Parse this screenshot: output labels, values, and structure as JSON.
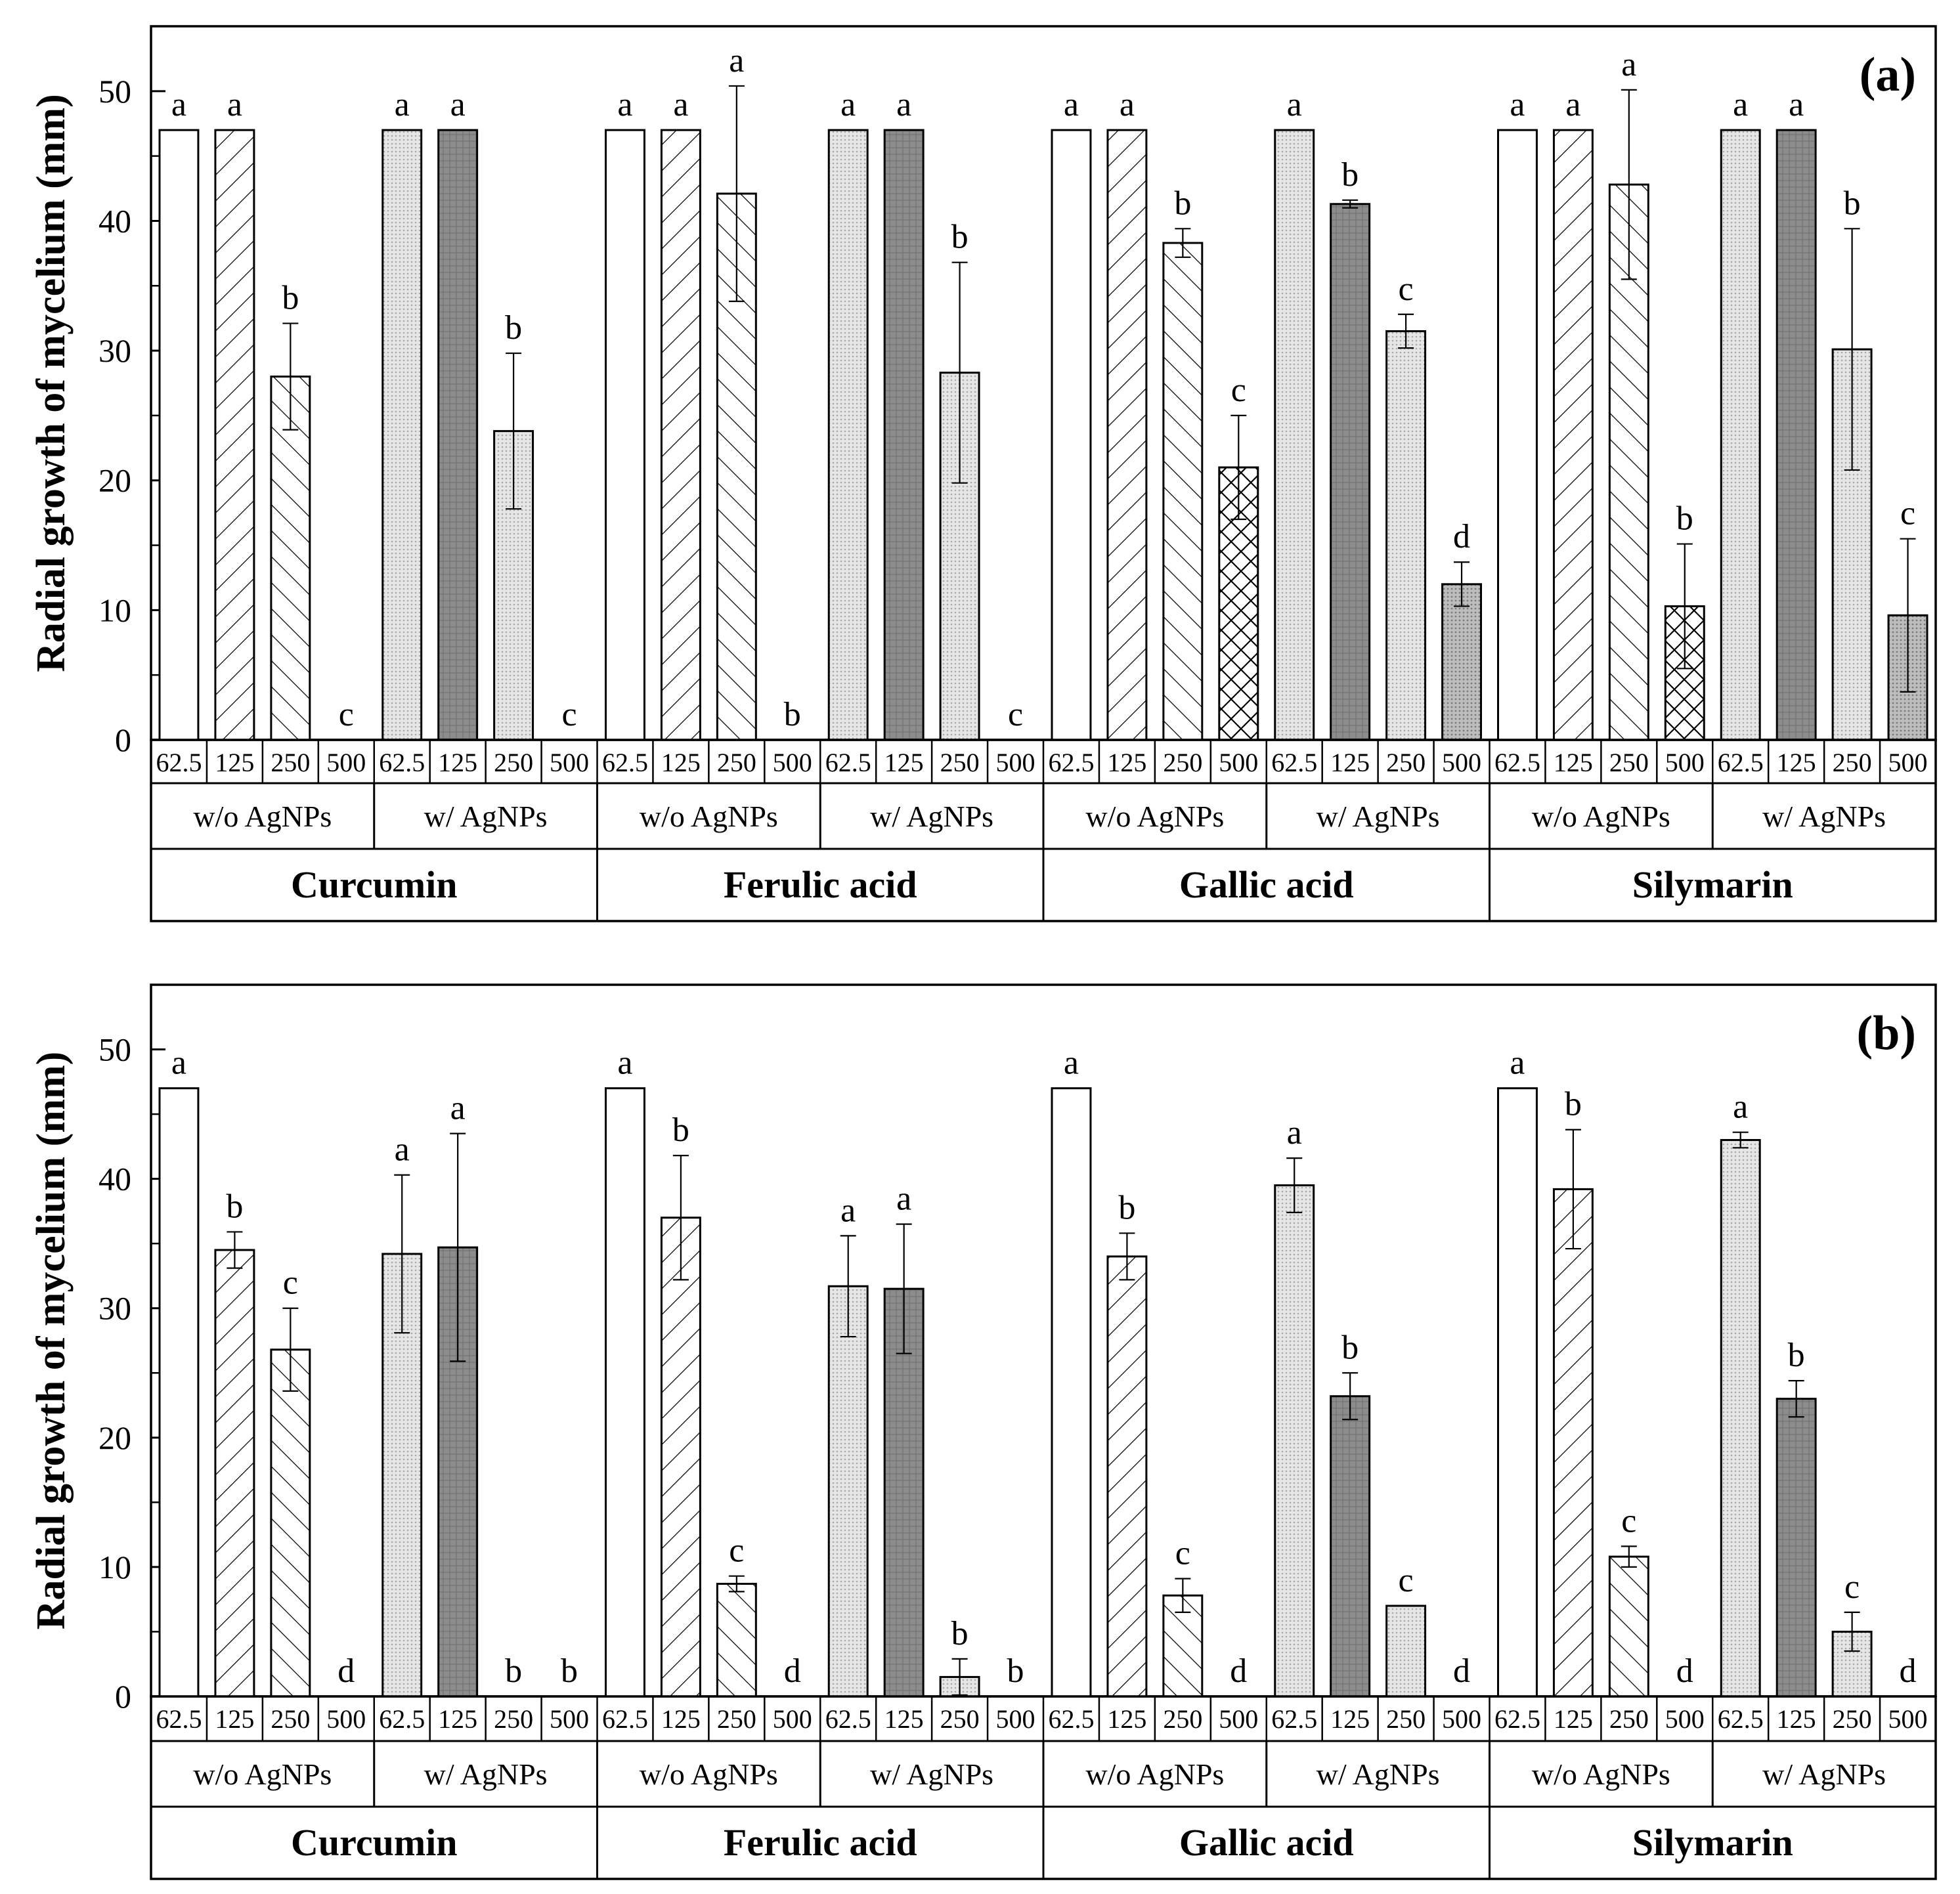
{
  "figure": {
    "colors": {
      "bar_edge": "#000000",
      "hatch": "#000000",
      "dot_fill": "#bdbdbd",
      "dark_fill": "#8c8c8c",
      "background": "#ffffff"
    },
    "concentration_labels": [
      "62.5",
      "125",
      "250",
      "500"
    ],
    "agnp_groups": [
      "w/o AgNPs",
      "w/ AgNPs"
    ],
    "compounds": [
      "Curcumin",
      "Ferulic acid",
      "Gallic acid",
      "Silymarin"
    ],
    "bar_styles_by_group": {
      "w/o AgNPs": [
        "plain",
        "hatch-forward",
        "hatch-back",
        "crosshatch"
      ],
      "w/ AgNPs": [
        "dots",
        "dark-grid",
        "dots",
        "dots-dark"
      ]
    }
  },
  "chart_data": [
    {
      "panel": "a",
      "type": "bar",
      "title": "(a)",
      "ylabel": "Radial growth of mycelium (mm)",
      "xlabel": "",
      "ylim": [
        0,
        55
      ],
      "yticks": [
        0,
        10,
        20,
        30,
        40,
        50
      ],
      "grid": false,
      "series": [
        {
          "compound": "Curcumin",
          "groups": [
            {
              "name": "w/o AgNPs",
              "values": [
                47,
                47,
                28,
                0
              ],
              "errors": [
                0,
                0,
                4.1,
                0
              ],
              "letters": [
                "a",
                "a",
                "b",
                "c"
              ]
            },
            {
              "name": "w/ AgNPs",
              "values": [
                47,
                47,
                23.8,
                0
              ],
              "errors": [
                0,
                0,
                6,
                0
              ],
              "letters": [
                "a",
                "a",
                "b",
                "c"
              ]
            }
          ]
        },
        {
          "compound": "Ferulic acid",
          "groups": [
            {
              "name": "w/o AgNPs",
              "values": [
                47,
                47,
                42.1,
                0
              ],
              "errors": [
                0,
                0,
                8.3,
                0
              ],
              "letters": [
                "a",
                "a",
                "a",
                "b"
              ]
            },
            {
              "name": "w/ AgNPs",
              "values": [
                47,
                47,
                28.3,
                0
              ],
              "errors": [
                0,
                0,
                8.5,
                0
              ],
              "letters": [
                "a",
                "a",
                "b",
                "c"
              ]
            }
          ]
        },
        {
          "compound": "Gallic acid",
          "groups": [
            {
              "name": "w/o AgNPs",
              "values": [
                47,
                47,
                38.3,
                21
              ],
              "errors": [
                0,
                0,
                1.1,
                4
              ],
              "letters": [
                "a",
                "a",
                "b",
                "c"
              ]
            },
            {
              "name": "w/ AgNPs",
              "values": [
                47,
                41.3,
                31.5,
                12
              ],
              "errors": [
                0,
                0.3,
                1.3,
                1.7
              ],
              "letters": [
                "a",
                "b",
                "c",
                "d"
              ]
            }
          ]
        },
        {
          "compound": "Silymarin",
          "groups": [
            {
              "name": "w/o AgNPs",
              "values": [
                47,
                47,
                42.8,
                10.3
              ],
              "errors": [
                0,
                0,
                7.3,
                4.8
              ],
              "letters": [
                "a",
                "a",
                "a",
                "b"
              ]
            },
            {
              "name": "w/ AgNPs",
              "values": [
                47,
                47,
                30.1,
                9.6
              ],
              "errors": [
                0,
                0,
                9.3,
                5.9
              ],
              "letters": [
                "a",
                "a",
                "b",
                "c"
              ]
            }
          ]
        }
      ]
    },
    {
      "panel": "b",
      "type": "bar",
      "title": "(b)",
      "ylabel": "Radial growth of mycelium (mm)",
      "xlabel": "",
      "ylim": [
        0,
        55
      ],
      "yticks": [
        0,
        10,
        20,
        30,
        40,
        50
      ],
      "grid": false,
      "series": [
        {
          "compound": "Curcumin",
          "groups": [
            {
              "name": "w/o AgNPs",
              "values": [
                47,
                34.5,
                26.8,
                0
              ],
              "errors": [
                0,
                1.4,
                3.2,
                0
              ],
              "letters": [
                "a",
                "b",
                "c",
                "d"
              ]
            },
            {
              "name": "w/ AgNPs",
              "values": [
                34.2,
                34.7,
                0,
                0
              ],
              "errors": [
                6.1,
                8.8,
                0,
                0
              ],
              "letters": [
                "a",
                "a",
                "b",
                "b"
              ]
            }
          ]
        },
        {
          "compound": "Ferulic acid",
          "groups": [
            {
              "name": "w/o AgNPs",
              "values": [
                47,
                37,
                8.7,
                0
              ],
              "errors": [
                0,
                4.8,
                0.6,
                0
              ],
              "letters": [
                "a",
                "b",
                "c",
                "d"
              ]
            },
            {
              "name": "w/ AgNPs",
              "values": [
                31.7,
                31.5,
                1.5,
                0
              ],
              "errors": [
                3.9,
                5,
                1.4,
                0
              ],
              "letters": [
                "a",
                "a",
                "b",
                "b"
              ]
            }
          ]
        },
        {
          "compound": "Gallic acid",
          "groups": [
            {
              "name": "w/o AgNPs",
              "values": [
                47,
                34,
                7.8,
                0
              ],
              "errors": [
                0,
                1.8,
                1.3,
                0
              ],
              "letters": [
                "a",
                "b",
                "c",
                "d"
              ]
            },
            {
              "name": "w/ AgNPs",
              "values": [
                39.5,
                23.2,
                7,
                0
              ],
              "errors": [
                2.1,
                1.8,
                0,
                0
              ],
              "letters": [
                "a",
                "b",
                "c",
                "d"
              ]
            }
          ]
        },
        {
          "compound": "Silymarin",
          "groups": [
            {
              "name": "w/o AgNPs",
              "values": [
                47,
                39.2,
                10.8,
                0
              ],
              "errors": [
                0,
                4.6,
                0.8,
                0
              ],
              "letters": [
                "a",
                "b",
                "c",
                "d"
              ]
            },
            {
              "name": "w/ AgNPs",
              "values": [
                43,
                23,
                5,
                0
              ],
              "errors": [
                0.6,
                1.4,
                1.5,
                0
              ],
              "letters": [
                "a",
                "b",
                "c",
                "d"
              ]
            }
          ]
        }
      ]
    }
  ]
}
